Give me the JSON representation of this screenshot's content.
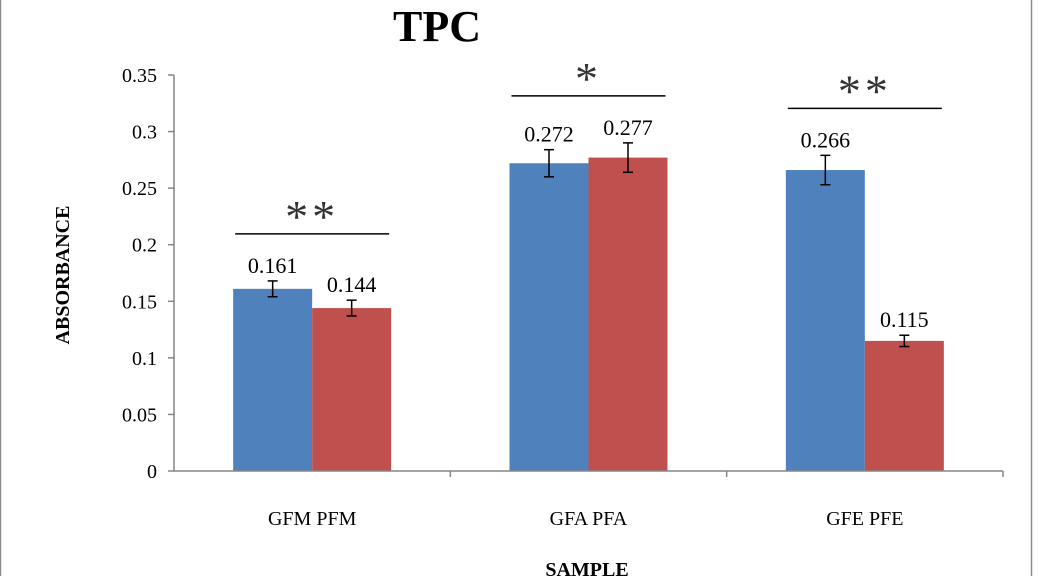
{
  "chart_data": {
    "type": "bar",
    "title": "TPC",
    "xlabel": "SAMPLE",
    "ylabel": "ABSORBANCE",
    "ylim": [
      0,
      0.35
    ],
    "yticks": [
      0,
      0.05,
      0.1,
      0.15,
      0.2,
      0.25,
      0.3,
      0.35
    ],
    "ytick_labels": [
      "0",
      "0.05",
      "0.1",
      "0.15",
      "0.2",
      "0.25",
      "0.3",
      "0.35"
    ],
    "grid": false,
    "legend": "none",
    "categories": [
      "GFM PFM",
      "GFA PFA",
      "GFE PFE"
    ],
    "series": [
      {
        "color": "#4f81bd",
        "values": [
          0.161,
          0.272,
          0.266
        ],
        "value_labels": [
          "0.161",
          "0.272",
          "0.266"
        ],
        "errors": [
          0.007,
          0.012,
          0.013
        ]
      },
      {
        "color": "#c0504d",
        "values": [
          0.144,
          0.277,
          0.115
        ],
        "value_labels": [
          "0.144",
          "0.277",
          "0.115"
        ],
        "errors": [
          0.007,
          0.013,
          0.005
        ]
      }
    ],
    "significance": [
      "**",
      "*",
      "**"
    ]
  }
}
